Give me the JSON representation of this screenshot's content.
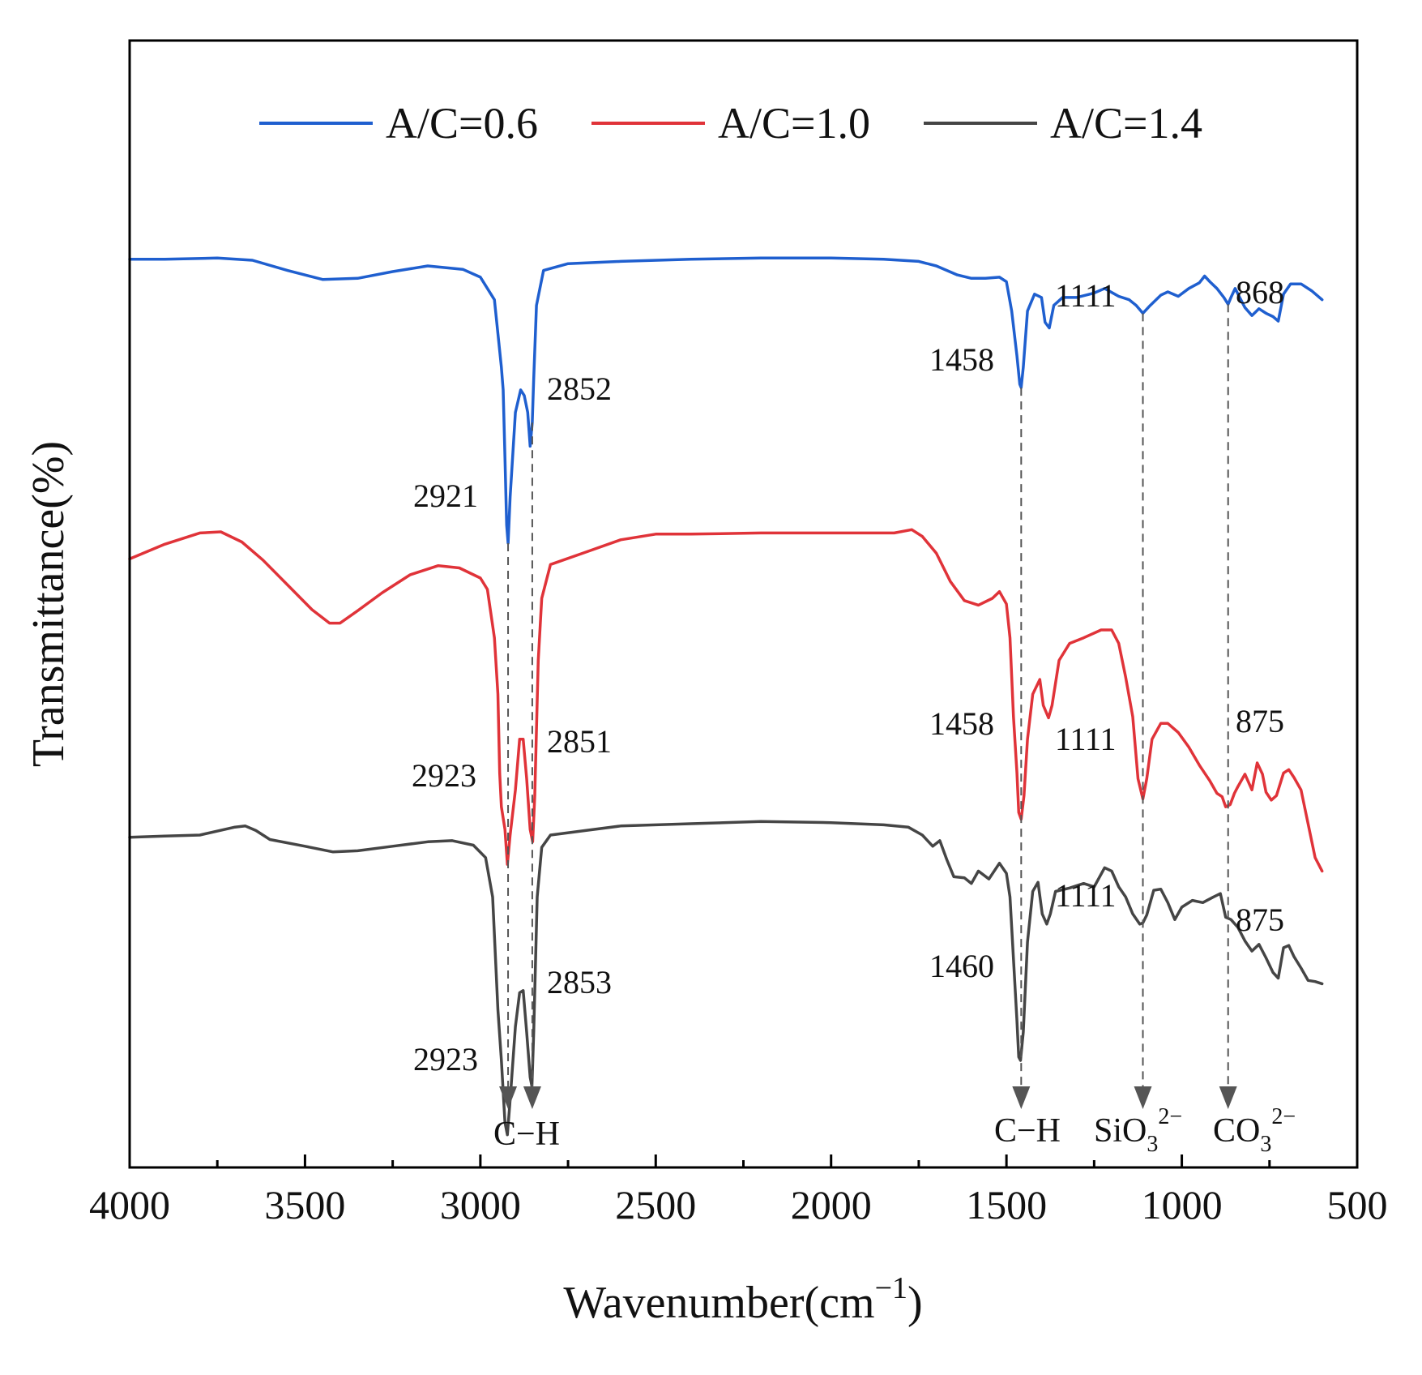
{
  "chart_data": {
    "type": "line",
    "title": "",
    "xlabel": "Wavenumber(cm",
    "xlabel_sup": "−1",
    "xlabel_close": ")",
    "ylabel": "Transmittance(%)",
    "xlim": [
      4000,
      500
    ],
    "ylim": [
      0,
      100
    ],
    "x_ticks": [
      "4000",
      "3500",
      "3000",
      "2500",
      "2000",
      "1500",
      "1000",
      "500"
    ],
    "legend": [
      "A/C=0.6",
      "A/C=1.0",
      "A/C=1.4"
    ],
    "series": [
      {
        "name": "A/C=0.6",
        "color": "#1f5fcf",
        "points": [
          [
            4000,
            80.6
          ],
          [
            3900,
            80.6
          ],
          [
            3750,
            80.7
          ],
          [
            3650,
            80.5
          ],
          [
            3550,
            79.6
          ],
          [
            3450,
            78.8
          ],
          [
            3350,
            78.9
          ],
          [
            3250,
            79.5
          ],
          [
            3150,
            80.0
          ],
          [
            3050,
            79.7
          ],
          [
            3000,
            79.0
          ],
          [
            2960,
            77.0
          ],
          [
            2940,
            71.0
          ],
          [
            2935,
            69.0
          ],
          [
            2930,
            63.0
          ],
          [
            2925,
            57.0
          ],
          [
            2921,
            55.4
          ],
          [
            2915,
            59.5
          ],
          [
            2900,
            67.0
          ],
          [
            2885,
            69.0
          ],
          [
            2875,
            68.5
          ],
          [
            2865,
            67.0
          ],
          [
            2858,
            64.0
          ],
          [
            2852,
            66.1
          ],
          [
            2848,
            70.0
          ],
          [
            2840,
            76.5
          ],
          [
            2820,
            79.6
          ],
          [
            2750,
            80.2
          ],
          [
            2600,
            80.4
          ],
          [
            2400,
            80.6
          ],
          [
            2200,
            80.7
          ],
          [
            2000,
            80.7
          ],
          [
            1850,
            80.6
          ],
          [
            1750,
            80.4
          ],
          [
            1700,
            80.0
          ],
          [
            1640,
            79.2
          ],
          [
            1600,
            78.9
          ],
          [
            1560,
            78.9
          ],
          [
            1520,
            79.0
          ],
          [
            1500,
            78.6
          ],
          [
            1485,
            76.0
          ],
          [
            1470,
            72.0
          ],
          [
            1462,
            69.5
          ],
          [
            1458,
            69.2
          ],
          [
            1452,
            71.0
          ],
          [
            1440,
            76.0
          ],
          [
            1420,
            77.5
          ],
          [
            1400,
            77.2
          ],
          [
            1390,
            75.0
          ],
          [
            1378,
            74.5
          ],
          [
            1365,
            76.5
          ],
          [
            1340,
            77.2
          ],
          [
            1300,
            77.2
          ],
          [
            1250,
            77.6
          ],
          [
            1220,
            78.0
          ],
          [
            1180,
            77.3
          ],
          [
            1150,
            77.0
          ],
          [
            1130,
            76.5
          ],
          [
            1111,
            75.8
          ],
          [
            1090,
            76.5
          ],
          [
            1060,
            77.4
          ],
          [
            1040,
            77.7
          ],
          [
            1010,
            77.3
          ],
          [
            980,
            78.0
          ],
          [
            950,
            78.5
          ],
          [
            935,
            79.1
          ],
          [
            920,
            78.6
          ],
          [
            900,
            78.0
          ],
          [
            880,
            77.2
          ],
          [
            868,
            76.6
          ],
          [
            860,
            77.2
          ],
          [
            848,
            78.0
          ],
          [
            835,
            77.2
          ],
          [
            820,
            76.3
          ],
          [
            800,
            75.6
          ],
          [
            780,
            76.2
          ],
          [
            760,
            75.8
          ],
          [
            740,
            75.5
          ],
          [
            725,
            75.1
          ],
          [
            710,
            77.5
          ],
          [
            690,
            78.4
          ],
          [
            660,
            78.4
          ],
          [
            630,
            77.8
          ],
          [
            600,
            77.0
          ]
        ]
      },
      {
        "name": "A/C=1.0",
        "color": "#e03339",
        "points": [
          [
            4000,
            54.0
          ],
          [
            3900,
            55.3
          ],
          [
            3800,
            56.3
          ],
          [
            3740,
            56.4
          ],
          [
            3680,
            55.5
          ],
          [
            3620,
            53.9
          ],
          [
            3550,
            51.7
          ],
          [
            3480,
            49.5
          ],
          [
            3430,
            48.3
          ],
          [
            3400,
            48.3
          ],
          [
            3350,
            49.4
          ],
          [
            3280,
            51.0
          ],
          [
            3200,
            52.6
          ],
          [
            3120,
            53.4
          ],
          [
            3060,
            53.2
          ],
          [
            3000,
            52.3
          ],
          [
            2980,
            51.3
          ],
          [
            2960,
            47.0
          ],
          [
            2950,
            42.0
          ],
          [
            2945,
            35.0
          ],
          [
            2940,
            32.0
          ],
          [
            2930,
            30.0
          ],
          [
            2923,
            26.9
          ],
          [
            2915,
            29.5
          ],
          [
            2900,
            33.5
          ],
          [
            2888,
            38.0
          ],
          [
            2878,
            38.0
          ],
          [
            2868,
            34.5
          ],
          [
            2858,
            30.0
          ],
          [
            2851,
            28.9
          ],
          [
            2845,
            33.0
          ],
          [
            2835,
            45.0
          ],
          [
            2825,
            50.5
          ],
          [
            2800,
            53.5
          ],
          [
            2700,
            54.6
          ],
          [
            2600,
            55.7
          ],
          [
            2500,
            56.2
          ],
          [
            2400,
            56.2
          ],
          [
            2200,
            56.3
          ],
          [
            2000,
            56.3
          ],
          [
            1900,
            56.3
          ],
          [
            1820,
            56.3
          ],
          [
            1770,
            56.6
          ],
          [
            1740,
            56.0
          ],
          [
            1700,
            54.5
          ],
          [
            1660,
            52.0
          ],
          [
            1620,
            50.3
          ],
          [
            1580,
            49.9
          ],
          [
            1540,
            50.5
          ],
          [
            1520,
            51.1
          ],
          [
            1500,
            50.0
          ],
          [
            1490,
            47.0
          ],
          [
            1480,
            40.0
          ],
          [
            1470,
            35.0
          ],
          [
            1465,
            31.5
          ],
          [
            1458,
            30.9
          ],
          [
            1450,
            33.0
          ],
          [
            1440,
            38.0
          ],
          [
            1425,
            42.0
          ],
          [
            1405,
            43.3
          ],
          [
            1395,
            41.0
          ],
          [
            1380,
            39.9
          ],
          [
            1370,
            41.0
          ],
          [
            1350,
            45.0
          ],
          [
            1320,
            46.5
          ],
          [
            1280,
            47.0
          ],
          [
            1230,
            47.7
          ],
          [
            1200,
            47.7
          ],
          [
            1180,
            46.5
          ],
          [
            1160,
            43.5
          ],
          [
            1140,
            40.0
          ],
          [
            1125,
            34.5
          ],
          [
            1111,
            32.7
          ],
          [
            1100,
            34.5
          ],
          [
            1085,
            38.0
          ],
          [
            1060,
            39.4
          ],
          [
            1040,
            39.4
          ],
          [
            1010,
            38.6
          ],
          [
            980,
            37.3
          ],
          [
            950,
            35.7
          ],
          [
            920,
            34.3
          ],
          [
            900,
            33.2
          ],
          [
            885,
            32.9
          ],
          [
            875,
            32.0
          ],
          [
            862,
            32.2
          ],
          [
            850,
            33.2
          ],
          [
            840,
            33.8
          ],
          [
            820,
            34.9
          ],
          [
            800,
            33.5
          ],
          [
            785,
            35.9
          ],
          [
            770,
            34.9
          ],
          [
            760,
            33.3
          ],
          [
            745,
            32.6
          ],
          [
            730,
            33.0
          ],
          [
            710,
            35.0
          ],
          [
            695,
            35.3
          ],
          [
            680,
            34.6
          ],
          [
            660,
            33.5
          ],
          [
            640,
            30.5
          ],
          [
            620,
            27.5
          ],
          [
            600,
            26.3
          ]
        ]
      },
      {
        "name": "A/C=1.4",
        "color": "#454545",
        "points": [
          [
            4000,
            29.3
          ],
          [
            3900,
            29.4
          ],
          [
            3800,
            29.5
          ],
          [
            3700,
            30.2
          ],
          [
            3670,
            30.3
          ],
          [
            3640,
            29.9
          ],
          [
            3600,
            29.1
          ],
          [
            3500,
            28.5
          ],
          [
            3420,
            28.0
          ],
          [
            3350,
            28.1
          ],
          [
            3250,
            28.5
          ],
          [
            3150,
            28.9
          ],
          [
            3080,
            29.0
          ],
          [
            3020,
            28.6
          ],
          [
            2985,
            27.5
          ],
          [
            2965,
            24.0
          ],
          [
            2950,
            14.0
          ],
          [
            2940,
            9.5
          ],
          [
            2930,
            4.0
          ],
          [
            2923,
            2.9
          ],
          [
            2915,
            6.0
          ],
          [
            2900,
            12.5
          ],
          [
            2888,
            15.5
          ],
          [
            2878,
            15.7
          ],
          [
            2868,
            12.0
          ],
          [
            2858,
            8.0
          ],
          [
            2853,
            7.2
          ],
          [
            2848,
            12.0
          ],
          [
            2838,
            24.0
          ],
          [
            2825,
            28.4
          ],
          [
            2800,
            29.5
          ],
          [
            2700,
            29.9
          ],
          [
            2600,
            30.3
          ],
          [
            2400,
            30.5
          ],
          [
            2200,
            30.7
          ],
          [
            2000,
            30.6
          ],
          [
            1850,
            30.4
          ],
          [
            1780,
            30.2
          ],
          [
            1740,
            29.5
          ],
          [
            1710,
            28.5
          ],
          [
            1690,
            29.0
          ],
          [
            1670,
            27.3
          ],
          [
            1650,
            25.8
          ],
          [
            1620,
            25.7
          ],
          [
            1600,
            25.2
          ],
          [
            1580,
            26.3
          ],
          [
            1550,
            25.6
          ],
          [
            1520,
            27.0
          ],
          [
            1500,
            26.1
          ],
          [
            1490,
            24.0
          ],
          [
            1480,
            18.5
          ],
          [
            1470,
            13.0
          ],
          [
            1465,
            9.8
          ],
          [
            1460,
            9.5
          ],
          [
            1452,
            12.0
          ],
          [
            1440,
            20.0
          ],
          [
            1425,
            24.5
          ],
          [
            1410,
            25.3
          ],
          [
            1398,
            22.5
          ],
          [
            1385,
            21.6
          ],
          [
            1375,
            22.5
          ],
          [
            1360,
            24.5
          ],
          [
            1320,
            24.8
          ],
          [
            1280,
            25.2
          ],
          [
            1250,
            24.9
          ],
          [
            1220,
            26.6
          ],
          [
            1200,
            26.3
          ],
          [
            1180,
            24.9
          ],
          [
            1160,
            24.0
          ],
          [
            1140,
            22.5
          ],
          [
            1120,
            21.6
          ],
          [
            1111,
            21.7
          ],
          [
            1100,
            22.4
          ],
          [
            1080,
            24.6
          ],
          [
            1060,
            24.7
          ],
          [
            1040,
            23.5
          ],
          [
            1020,
            22.0
          ],
          [
            1000,
            23.1
          ],
          [
            970,
            23.7
          ],
          [
            940,
            23.5
          ],
          [
            910,
            24.0
          ],
          [
            890,
            24.3
          ],
          [
            875,
            22.2
          ],
          [
            860,
            22.0
          ],
          [
            840,
            21.3
          ],
          [
            820,
            20.1
          ],
          [
            800,
            19.2
          ],
          [
            780,
            19.8
          ],
          [
            760,
            18.6
          ],
          [
            740,
            17.3
          ],
          [
            725,
            16.8
          ],
          [
            710,
            19.5
          ],
          [
            695,
            19.7
          ],
          [
            680,
            18.7
          ],
          [
            660,
            17.7
          ],
          [
            640,
            16.6
          ],
          [
            620,
            16.5
          ],
          [
            600,
            16.3
          ]
        ]
      }
    ],
    "peak_labels": [
      {
        "text": "2921",
        "series": "A/C=0.6"
      },
      {
        "text": "2852",
        "series": "A/C=0.6"
      },
      {
        "text": "1458",
        "series": "A/C=0.6"
      },
      {
        "text": "1111",
        "series": "A/C=0.6"
      },
      {
        "text": "868",
        "series": "A/C=0.6"
      },
      {
        "text": "2923",
        "series": "A/C=1.0"
      },
      {
        "text": "2851",
        "series": "A/C=1.0"
      },
      {
        "text": "1458",
        "series": "A/C=1.0"
      },
      {
        "text": "1111",
        "series": "A/C=1.0"
      },
      {
        "text": "875",
        "series": "A/C=1.0"
      },
      {
        "text": "2923",
        "series": "A/C=1.4"
      },
      {
        "text": "2853",
        "series": "A/C=1.4"
      },
      {
        "text": "1460",
        "series": "A/C=1.4"
      },
      {
        "text": "1111",
        "series": "A/C=1.4"
      },
      {
        "text": "875",
        "series": "A/C=1.4"
      }
    ],
    "marker_lines": [
      {
        "x": 2921,
        "y_top": 55.4
      },
      {
        "x": 2852,
        "y_top": 66.1
      },
      {
        "x": 1458,
        "y_top": 69.2
      },
      {
        "x": 1111,
        "y_top": 75.8
      },
      {
        "x": 868,
        "y_top": 76.6
      }
    ],
    "group_labels": [
      {
        "main": "C−H"
      },
      {
        "main": "C−H"
      },
      {
        "main": "SiO",
        "sub": "3",
        "sup": "2−"
      },
      {
        "main": "CO",
        "sub": "3",
        "sup": "2−"
      }
    ]
  }
}
